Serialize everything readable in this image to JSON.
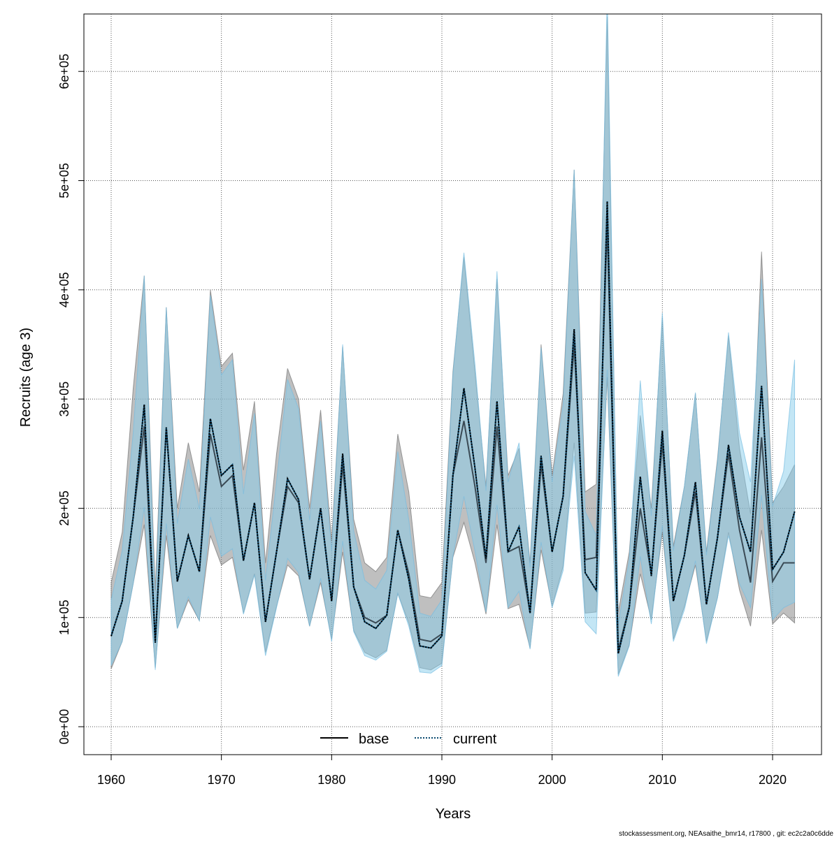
{
  "chart_data": {
    "type": "line",
    "title": "",
    "xlabel": "Years",
    "ylabel": "Recruits (age 3)",
    "xlim": [
      1957.6,
      2024.5
    ],
    "ylim": [
      -25000,
      655000
    ],
    "x_ticks": [
      1960,
      1970,
      1980,
      1990,
      2000,
      2010,
      2020
    ],
    "y_ticks": [
      0,
      100000,
      200000,
      300000,
      400000,
      500000,
      600000
    ],
    "y_tick_labels": [
      "0e+00",
      "1e+05",
      "2e+05",
      "3e+05",
      "4e+05",
      "5e+05",
      "6e+05"
    ],
    "grid": true,
    "legend_position": "bottom-center",
    "units": "1e5",
    "x": [
      1960,
      1961,
      1962,
      1963,
      1964,
      1965,
      1966,
      1967,
      1968,
      1969,
      1970,
      1971,
      1972,
      1973,
      1974,
      1975,
      1976,
      1977,
      1978,
      1979,
      1980,
      1981,
      1982,
      1983,
      1984,
      1985,
      1986,
      1987,
      1988,
      1989,
      1990,
      1991,
      1992,
      1993,
      1994,
      1995,
      1996,
      1997,
      1998,
      1999,
      2000,
      2001,
      2002,
      2003,
      2004,
      2005,
      2006,
      2007,
      2008,
      2009,
      2010,
      2011,
      2012,
      2013,
      2014,
      2015,
      2016,
      2017,
      2018,
      2019,
      2020,
      2021,
      2022
    ],
    "series": [
      {
        "name": "base",
        "line_style": "solid",
        "band_color": "#808080",
        "values": [
          0.83,
          1.15,
          1.92,
          2.75,
          0.77,
          2.74,
          1.33,
          1.75,
          1.42,
          2.68,
          2.2,
          2.3,
          1.52,
          2.05,
          0.96,
          1.6,
          2.2,
          2.05,
          1.35,
          2.0,
          1.15,
          2.4,
          1.28,
          1.0,
          0.95,
          1.02,
          1.8,
          1.4,
          0.8,
          0.78,
          0.85,
          2.3,
          2.8,
          2.2,
          1.5,
          2.75,
          1.6,
          1.65,
          1.04,
          2.4,
          1.6,
          2.11,
          3.5,
          1.53,
          1.55,
          4.6,
          0.7,
          1.1,
          2.0,
          1.4,
          2.6,
          1.15,
          1.57,
          2.15,
          1.12,
          1.73,
          2.5,
          1.8,
          1.32,
          2.65,
          1.33,
          1.5,
          1.5
        ],
        "upper": [
          1.32,
          1.78,
          3.1,
          4.13,
          1.25,
          3.84,
          2.0,
          2.6,
          2.15,
          4.0,
          3.3,
          3.42,
          2.35,
          2.98,
          1.5,
          2.5,
          3.28,
          3.0,
          2.0,
          2.9,
          1.7,
          3.48,
          1.9,
          1.5,
          1.42,
          1.55,
          2.68,
          2.15,
          1.2,
          1.18,
          1.32,
          3.25,
          4.3,
          3.25,
          2.2,
          4.1,
          2.3,
          2.55,
          1.5,
          3.5,
          2.3,
          3.05,
          5.1,
          2.15,
          2.22,
          6.5,
          1.05,
          1.6,
          2.85,
          2.0,
          3.75,
          1.65,
          2.2,
          3.05,
          1.6,
          2.45,
          3.58,
          2.55,
          1.95,
          4.35,
          2.05,
          2.2,
          2.4
        ],
        "lower": [
          0.53,
          0.78,
          1.31,
          1.85,
          0.54,
          1.75,
          0.9,
          1.16,
          0.97,
          1.75,
          1.48,
          1.55,
          1.04,
          1.4,
          0.68,
          1.1,
          1.48,
          1.38,
          0.92,
          1.32,
          0.8,
          1.6,
          0.88,
          0.68,
          0.63,
          0.7,
          1.22,
          0.95,
          0.54,
          0.52,
          0.58,
          1.55,
          1.87,
          1.5,
          1.03,
          1.85,
          1.08,
          1.12,
          0.72,
          1.62,
          1.1,
          1.47,
          2.6,
          1.04,
          1.05,
          3.2,
          0.48,
          0.75,
          1.4,
          0.98,
          1.78,
          0.8,
          1.1,
          1.48,
          0.78,
          1.18,
          1.78,
          1.25,
          0.92,
          1.8,
          0.94,
          1.04,
          0.95
        ]
      },
      {
        "name": "current",
        "line_style": "dotted",
        "band_color": "#87ceeb",
        "values": [
          0.83,
          1.15,
          1.92,
          2.95,
          0.77,
          2.74,
          1.33,
          1.75,
          1.42,
          2.82,
          2.3,
          2.4,
          1.52,
          2.05,
          0.96,
          1.6,
          2.27,
          2.08,
          1.35,
          2.0,
          1.15,
          2.5,
          1.28,
          0.96,
          0.9,
          1.02,
          1.8,
          1.35,
          0.74,
          0.72,
          0.83,
          2.3,
          3.1,
          2.37,
          1.54,
          2.98,
          1.6,
          1.83,
          1.04,
          2.48,
          1.6,
          2.11,
          3.64,
          1.41,
          1.25,
          4.81,
          0.67,
          1.09,
          2.29,
          1.38,
          2.71,
          1.15,
          1.57,
          2.24,
          1.12,
          1.73,
          2.58,
          1.92,
          1.6,
          3.12,
          1.44,
          1.6,
          1.97
        ],
        "upper": [
          1.16,
          1.61,
          2.69,
          4.13,
          1.08,
          3.84,
          1.86,
          2.45,
          1.99,
          3.95,
          3.22,
          3.36,
          2.13,
          2.87,
          1.34,
          2.24,
          3.18,
          2.91,
          1.89,
          2.8,
          1.61,
          3.5,
          1.79,
          1.34,
          1.26,
          1.43,
          2.52,
          1.89,
          1.04,
          1.01,
          1.16,
          3.22,
          4.34,
          3.32,
          2.16,
          4.17,
          2.24,
          2.6,
          1.46,
          3.47,
          2.24,
          2.95,
          5.1,
          1.97,
          1.75,
          6.73,
          0.94,
          1.53,
          3.17,
          1.93,
          3.79,
          1.61,
          2.2,
          3.06,
          1.57,
          2.42,
          3.61,
          2.69,
          2.24,
          4.1,
          2.02,
          2.34,
          3.36
        ],
        "lower": [
          0.56,
          0.78,
          1.31,
          2.01,
          0.52,
          1.86,
          0.9,
          1.19,
          0.97,
          1.92,
          1.56,
          1.63,
          1.03,
          1.39,
          0.65,
          1.09,
          1.54,
          1.41,
          0.92,
          1.36,
          0.78,
          1.7,
          0.87,
          0.65,
          0.61,
          0.69,
          1.22,
          0.92,
          0.5,
          0.49,
          0.56,
          1.56,
          2.11,
          1.61,
          1.05,
          2.03,
          1.09,
          1.24,
          0.71,
          1.69,
          1.09,
          1.43,
          2.48,
          0.96,
          0.85,
          3.27,
          0.46,
          0.74,
          1.56,
          0.94,
          1.84,
          0.78,
          1.07,
          1.52,
          0.76,
          1.18,
          1.75,
          1.31,
          1.09,
          2.12,
          0.98,
          1.09,
          1.14
        ]
      }
    ]
  },
  "footer": "stockassessment.org, NEAsaithe_bmr14, r17800 , git: ec2c2a0c6dde"
}
